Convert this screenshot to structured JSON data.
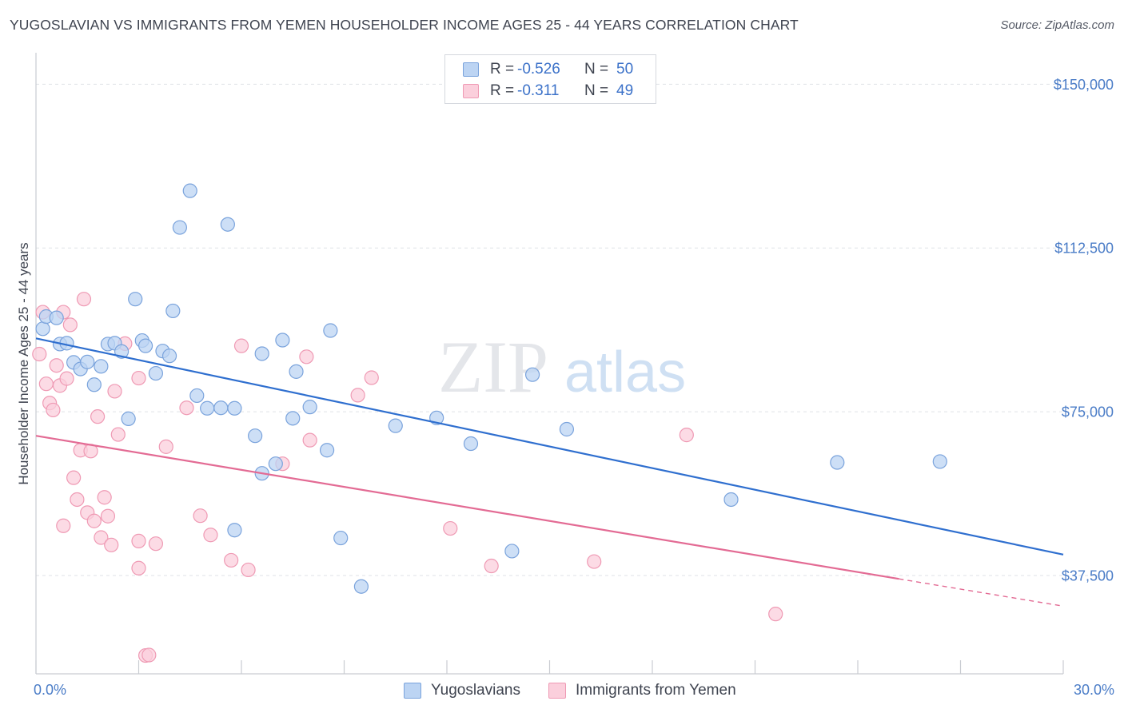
{
  "title": "YUGOSLAVIAN VS IMMIGRANTS FROM YEMEN HOUSEHOLDER INCOME AGES 25 - 44 YEARS CORRELATION CHART",
  "source": "Source: ZipAtlas.com",
  "watermark": {
    "zip": "ZIP",
    "atlas": "atlas"
  },
  "legend": {
    "rows": [
      {
        "r_label": "R = ",
        "r_value": "-0.526",
        "n_label": "N = ",
        "n_value": "50"
      },
      {
        "r_label": "R = ",
        "r_value": "-0.311",
        "n_label": "N = ",
        "n_value": "49"
      }
    ]
  },
  "bottom_legend": {
    "series1": "Yugoslavians",
    "series2": "Immigrants from Yemen"
  },
  "chart_data": {
    "type": "scatter",
    "title": "YUGOSLAVIAN VS IMMIGRANTS FROM YEMEN HOUSEHOLDER INCOME AGES 25 - 44 YEARS CORRELATION CHART",
    "xlabel": "",
    "ylabel": "Householder Income Ages 25 - 44 years",
    "xlim": [
      0,
      30
    ],
    "ylim": [
      15000,
      155000
    ],
    "x_tick_labels": [
      {
        "value": 0,
        "label": "0.0%"
      },
      {
        "value": 30,
        "label": "30.0%"
      }
    ],
    "x_minor_ticks": [
      0,
      3,
      6,
      9,
      12,
      15,
      18,
      21,
      24,
      27,
      30
    ],
    "y_ticks": [
      {
        "value": 150000,
        "label": "$150,000"
      },
      {
        "value": 112500,
        "label": "$112,500"
      },
      {
        "value": 75000,
        "label": "$75,000"
      },
      {
        "value": 37500,
        "label": "$37,500"
      }
    ],
    "grid": true,
    "colors": {
      "series1_fill": "#bcd4f3",
      "series1_stroke": "#7aa3dc",
      "series1_line": "#2f6fcf",
      "series2_fill": "#fbcfdc",
      "series2_stroke": "#ef9ab4",
      "series2_line": "#e36b94"
    },
    "series": [
      {
        "name": "Yugoslavians",
        "R": -0.526,
        "N": 50,
        "trend": {
          "x0": 0,
          "y0": 91800,
          "x1": 30,
          "y1": 42300,
          "solid_until": 30
        },
        "points": [
          [
            0.2,
            94000
          ],
          [
            0.3,
            96800
          ],
          [
            0.6,
            96500
          ],
          [
            0.7,
            90500
          ],
          [
            0.9,
            90700
          ],
          [
            1.1,
            86300
          ],
          [
            1.3,
            84800
          ],
          [
            1.5,
            86400
          ],
          [
            1.7,
            81200
          ],
          [
            1.9,
            85400
          ],
          [
            2.1,
            90500
          ],
          [
            2.3,
            90700
          ],
          [
            2.5,
            88800
          ],
          [
            2.7,
            73400
          ],
          [
            2.9,
            100800
          ],
          [
            3.1,
            91300
          ],
          [
            3.2,
            90100
          ],
          [
            3.5,
            83800
          ],
          [
            3.7,
            88900
          ],
          [
            3.9,
            87800
          ],
          [
            4.0,
            98100
          ],
          [
            4.2,
            117200
          ],
          [
            4.5,
            125600
          ],
          [
            4.7,
            78700
          ],
          [
            5.0,
            75800
          ],
          [
            5.4,
            75900
          ],
          [
            5.6,
            117900
          ],
          [
            5.8,
            75800
          ],
          [
            5.8,
            47900
          ],
          [
            6.4,
            69500
          ],
          [
            6.6,
            88300
          ],
          [
            6.6,
            60900
          ],
          [
            7.0,
            63100
          ],
          [
            7.2,
            91400
          ],
          [
            7.5,
            73500
          ],
          [
            7.6,
            84200
          ],
          [
            8.0,
            76100
          ],
          [
            8.5,
            66200
          ],
          [
            8.6,
            93600
          ],
          [
            8.9,
            46100
          ],
          [
            9.5,
            35000
          ],
          [
            10.5,
            71800
          ],
          [
            11.7,
            73600
          ],
          [
            12.7,
            67700
          ],
          [
            13.9,
            43100
          ],
          [
            14.5,
            83500
          ],
          [
            15.5,
            71000
          ],
          [
            20.3,
            54900
          ],
          [
            23.4,
            63400
          ],
          [
            26.4,
            63600
          ]
        ]
      },
      {
        "name": "Immigrants from Yemen",
        "R": -0.311,
        "N": 49,
        "trend": {
          "x0": 0,
          "y0": 69500,
          "x1": 30,
          "y1": 30500,
          "solid_until": 25.2
        },
        "points": [
          [
            0.1,
            88200
          ],
          [
            0.2,
            97800
          ],
          [
            0.3,
            81400
          ],
          [
            0.4,
            77000
          ],
          [
            0.5,
            75400
          ],
          [
            0.6,
            85600
          ],
          [
            0.7,
            81000
          ],
          [
            0.8,
            97800
          ],
          [
            0.8,
            48900
          ],
          [
            0.9,
            82600
          ],
          [
            1.0,
            94900
          ],
          [
            1.1,
            59900
          ],
          [
            1.2,
            54900
          ],
          [
            1.3,
            66200
          ],
          [
            1.4,
            100800
          ],
          [
            1.5,
            51900
          ],
          [
            1.6,
            66000
          ],
          [
            1.7,
            50000
          ],
          [
            1.8,
            73900
          ],
          [
            1.9,
            46200
          ],
          [
            2.0,
            55400
          ],
          [
            2.1,
            51100
          ],
          [
            2.2,
            44500
          ],
          [
            2.3,
            79700
          ],
          [
            2.4,
            69800
          ],
          [
            2.6,
            90600
          ],
          [
            3.0,
            82700
          ],
          [
            3.0,
            45400
          ],
          [
            3.0,
            39200
          ],
          [
            3.2,
            19200
          ],
          [
            3.3,
            19300
          ],
          [
            3.5,
            44800
          ],
          [
            3.8,
            67000
          ],
          [
            4.4,
            75900
          ],
          [
            4.8,
            51200
          ],
          [
            5.1,
            46800
          ],
          [
            5.7,
            41000
          ],
          [
            6.0,
            90100
          ],
          [
            6.2,
            38800
          ],
          [
            7.2,
            63100
          ],
          [
            7.9,
            87600
          ],
          [
            8.0,
            68500
          ],
          [
            9.4,
            78800
          ],
          [
            9.8,
            82800
          ],
          [
            12.1,
            48300
          ],
          [
            13.3,
            39700
          ],
          [
            16.3,
            40700
          ],
          [
            19.0,
            69700
          ],
          [
            21.6,
            28700
          ]
        ]
      }
    ]
  }
}
